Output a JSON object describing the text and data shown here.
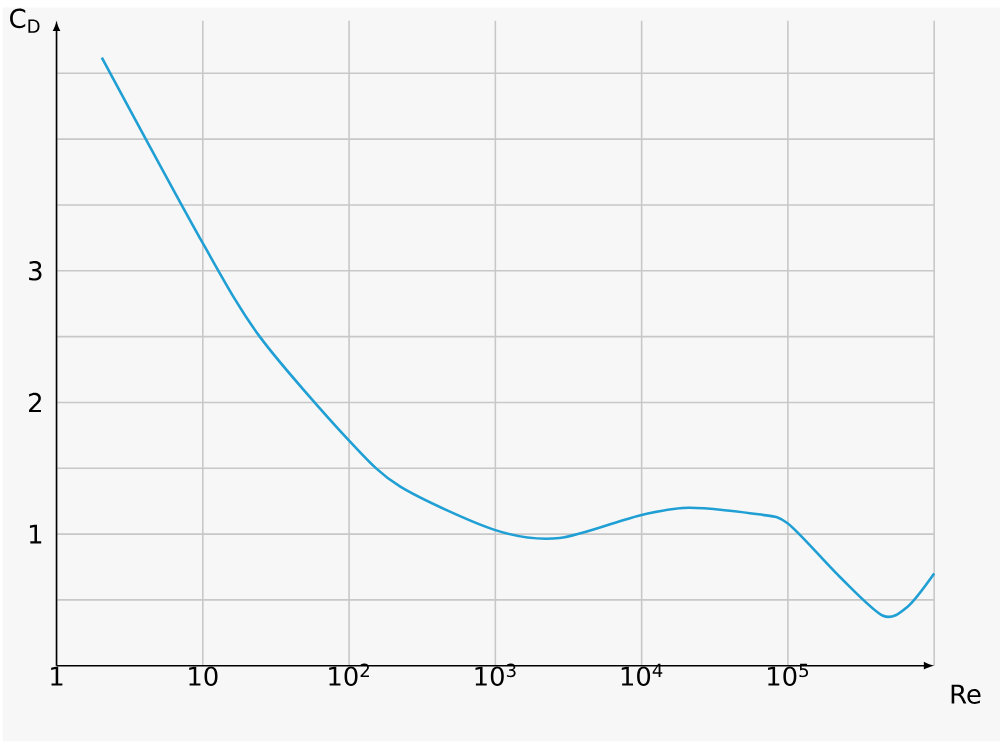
{
  "chart_data": {
    "type": "line",
    "xlabel": "Re",
    "ylabel": "C$_{D}$",
    "log": "x",
    "grid": true,
    "marker": "none",
    "line_style": "solid",
    "x": [
      2.04,
      10,
      24.5,
      100,
      224,
      1000,
      2750,
      9550,
      20900,
      63100,
      100000,
      224000,
      447000,
      661000,
      1000000
    ],
    "series": [
      {
        "color": "#1f9fd4",
        "values": [
          4.62,
          3.21,
          2.5,
          1.71,
          1.36,
          1.03,
          0.97,
          1.14,
          1.2,
          1.15,
          1.08,
          0.68,
          0.38,
          0.45,
          0.7
        ]
      }
    ],
    "xlim": [
      1,
      1000000
    ],
    "ylim": [
      0,
      4.9
    ],
    "xticks": [
      1,
      10,
      {
        "value": 100,
        "label": "10$^{2}$"
      },
      {
        "value": 1000,
        "label": "10$^{3}$"
      },
      {
        "value": 10000,
        "label": "10$^{4}$"
      },
      {
        "value": 100000,
        "label": "10$^{5}$"
      },
      {
        "value": 1000000,
        "label": null
      }
    ],
    "yticks": [
      {
        "value": 0.5,
        "label": null
      },
      1,
      {
        "value": 1.5,
        "label": null
      },
      2,
      {
        "value": 2.5,
        "label": null
      },
      3,
      {
        "value": 3.5,
        "label": null
      },
      {
        "value": 4,
        "label": null
      },
      {
        "value": 4.5,
        "label": null
      }
    ]
  }
}
